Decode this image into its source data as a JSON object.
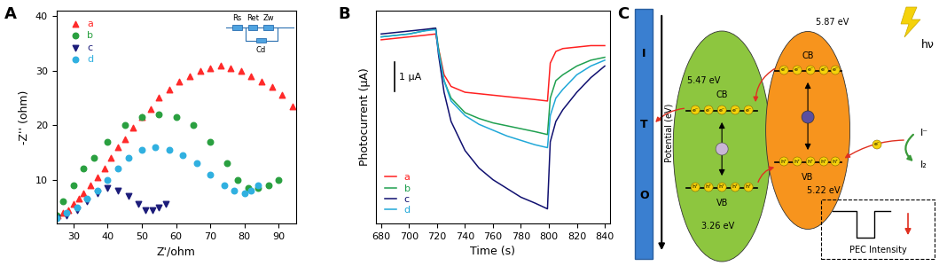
{
  "chart_data": [
    {
      "type": "scatter",
      "title": "A",
      "xlabel": "Z'/ohm",
      "ylabel": "-Z'' (ohm)",
      "xlim": [
        25,
        95
      ],
      "xticks": [
        30,
        40,
        50,
        60,
        70,
        80,
        90
      ],
      "ylim": [
        2,
        41
      ],
      "yticks": [
        10,
        20,
        30,
        40
      ],
      "legend": "upper left",
      "annotations": [
        "Rs",
        "Ret",
        "Zw",
        "Cd"
      ],
      "series": [
        {
          "name": "a",
          "color": "#ff2a2a",
          "marker": "triangle_up",
          "x": [
            25.5,
            27,
            28.5,
            30,
            31.5,
            33,
            35,
            37,
            39,
            41,
            43,
            45,
            47.5,
            50,
            52.5,
            55,
            58,
            61,
            64,
            67,
            70,
            73,
            76,
            79,
            82,
            85,
            88,
            91,
            94
          ],
          "values": [
            3.5,
            4,
            4.5,
            5.5,
            6.5,
            7.5,
            9,
            10.5,
            12,
            14,
            16,
            17.5,
            19.5,
            21.5,
            23,
            25,
            26.5,
            28,
            29,
            30,
            30.5,
            31,
            30.5,
            30,
            29,
            28,
            27,
            25.5,
            23.5
          ]
        },
        {
          "name": "b",
          "color": "#2aa040",
          "marker": "circle",
          "x": [
            25,
            27,
            30,
            33,
            36,
            40,
            45,
            50,
            55,
            60,
            65,
            70,
            75,
            78,
            81,
            84,
            87,
            90
          ],
          "values": [
            3.5,
            6,
            9,
            12,
            14,
            17,
            20,
            21.5,
            22,
            21.5,
            20,
            17,
            13,
            10,
            8.5,
            8.5,
            9,
            10
          ]
        },
        {
          "name": "c",
          "color": "#1c1c7a",
          "marker": "triangle_down",
          "x": [
            25,
            28,
            31,
            34,
            37,
            40,
            43,
            46,
            49,
            51,
            53,
            55,
            57
          ],
          "values": [
            3,
            3.5,
            4.5,
            6,
            7.5,
            8.5,
            8,
            7,
            5.5,
            4.5,
            4.5,
            5,
            5.5
          ]
        },
        {
          "name": "d",
          "color": "#30b0e0",
          "marker": "circle",
          "x": [
            25,
            28,
            31,
            34,
            37,
            40,
            43,
            46,
            50,
            54,
            58,
            62,
            66,
            70,
            74,
            77,
            80,
            82,
            84
          ],
          "values": [
            3,
            4,
            5,
            6.5,
            8,
            10,
            12,
            14,
            15.5,
            16,
            15.5,
            14.5,
            13,
            11,
            9,
            8,
            7.5,
            8,
            9
          ]
        }
      ]
    },
    {
      "type": "line",
      "title": "B",
      "xlabel": "Time (s)",
      "ylabel": "Photocurrent (μA)",
      "x": [
        680,
        690,
        700,
        710,
        719,
        721,
        725,
        730,
        740,
        750,
        760,
        770,
        780,
        790,
        799,
        801,
        805,
        810,
        820,
        830,
        840
      ],
      "xlim": [
        676,
        844
      ],
      "xticks": [
        680,
        700,
        720,
        740,
        760,
        780,
        800,
        820,
        840
      ],
      "ylim": [
        -6.3,
        1.0
      ],
      "yticks": [],
      "tick_labels": "x",
      "legend": "lower left",
      "scale_bar": {
        "value": 1,
        "label": "1 μA"
      },
      "series": [
        {
          "name": "a",
          "color": "#ff2020",
          "line_style": "solid",
          "values": [
            0,
            0.05,
            0.1,
            0.15,
            0.2,
            -0.3,
            -1.2,
            -1.6,
            -1.8,
            -1.85,
            -1.9,
            -1.95,
            -2.0,
            -2.05,
            -2.1,
            -0.8,
            -0.4,
            -0.3,
            -0.25,
            -0.2,
            -0.2
          ]
        },
        {
          "name": "b",
          "color": "#20a050",
          "line_style": "solid",
          "values": [
            0.1,
            0.15,
            0.2,
            0.3,
            0.4,
            -0.3,
            -1.4,
            -2.0,
            -2.5,
            -2.7,
            -2.85,
            -2.95,
            -3.05,
            -3.15,
            -3.25,
            -2.0,
            -1.4,
            -1.2,
            -0.9,
            -0.7,
            -0.6
          ]
        },
        {
          "name": "c",
          "color": "#101070",
          "line_style": "solid",
          "values": [
            0.2,
            0.25,
            0.3,
            0.35,
            0.4,
            -0.5,
            -1.8,
            -2.8,
            -3.8,
            -4.4,
            -4.8,
            -5.1,
            -5.4,
            -5.6,
            -5.8,
            -3.5,
            -2.8,
            -2.4,
            -1.8,
            -1.3,
            -0.9
          ]
        },
        {
          "name": "d",
          "color": "#20a8d8",
          "line_style": "solid",
          "values": [
            0.1,
            0.15,
            0.2,
            0.3,
            0.35,
            -0.4,
            -1.4,
            -2.1,
            -2.6,
            -2.9,
            -3.1,
            -3.3,
            -3.45,
            -3.6,
            -3.7,
            -2.6,
            -2.0,
            -1.7,
            -1.2,
            -0.9,
            -0.7
          ]
        }
      ]
    }
  ],
  "diagram": {
    "panel_label": "C",
    "electrode": [
      "I",
      "T",
      "O"
    ],
    "axis_label": "Potential (eV)",
    "left_band": {
      "cb_label": "CB",
      "cb_energy": "5.47 eV",
      "vb_label": "VB",
      "vb_energy": "3.26 eV"
    },
    "right_band": {
      "cb_label": "CB",
      "cb_energy": "5.87 eV",
      "vb_label": "VB",
      "vb_energy": "5.22 eV"
    },
    "electron": "e⁻",
    "hole": "h⁺",
    "light": "hν",
    "redox": {
      "reduced": "I⁻",
      "oxidized": "I₂"
    },
    "inset": "PEC Intensity"
  }
}
